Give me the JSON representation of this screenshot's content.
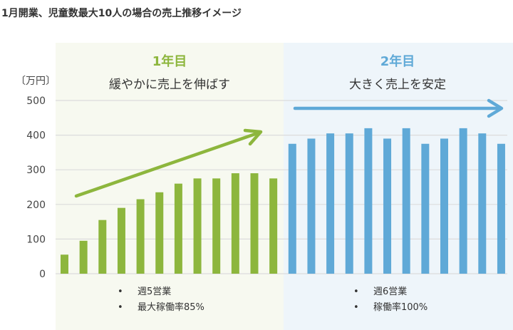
{
  "title": "1月開業、児童数最大10人の場合の売上推移イメージ",
  "panels": [
    {
      "year": "1年目",
      "subtitle": "緩やかに売上を伸ばす",
      "notes": [
        "週5営業",
        "最大稼働率85%"
      ],
      "color": "#8db63d",
      "background": "#f7f9f0"
    },
    {
      "year": "2年目",
      "subtitle": "大きく売上を安定",
      "notes": [
        "週6営業",
        "稼働率100%"
      ],
      "color": "#5fa9d7",
      "background": "#eef5fa"
    }
  ],
  "chart_data": {
    "type": "bar",
    "ylabel": "〔万円〕",
    "ylim": [
      0,
      500
    ],
    "yticks": [
      0,
      100,
      200,
      300,
      400,
      500
    ],
    "grid": true,
    "series": [
      {
        "values": [
          55,
          95,
          155,
          190,
          215,
          235,
          260,
          275,
          275,
          290,
          290,
          275
        ],
        "color": "#8db63d"
      },
      {
        "values": [
          375,
          390,
          405,
          405,
          420,
          390,
          420,
          375,
          390,
          420,
          405,
          375
        ],
        "color": "#5fa9d7"
      }
    ]
  }
}
